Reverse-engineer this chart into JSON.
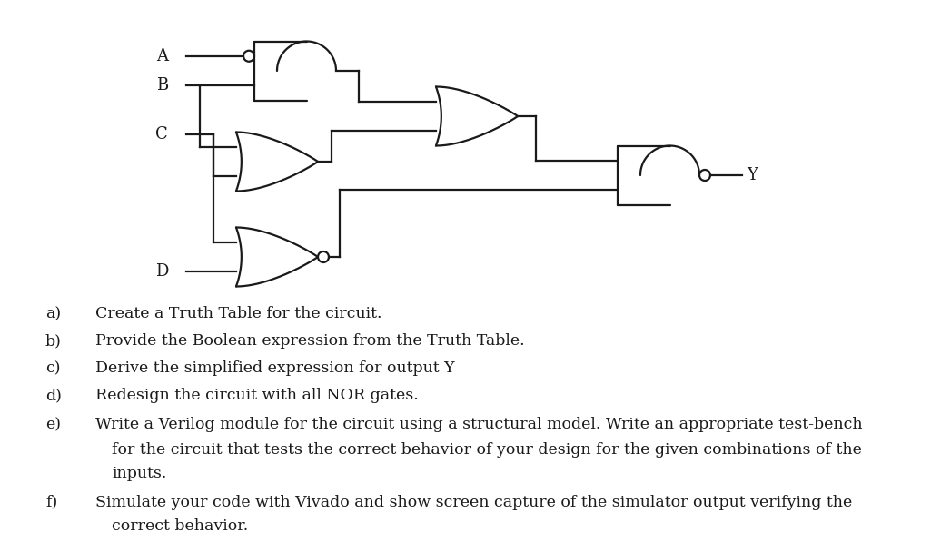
{
  "bg_color": "#ffffff",
  "line_color": "#1a1a1a",
  "line_width": 1.6,
  "circuit_font_size": 13,
  "text_font_size": 12.5,
  "items": [
    {
      "label": "a)",
      "text": "Create a Truth Table for the circuit."
    },
    {
      "label": "b)",
      "text": "Provide the Boolean expression from the Truth Table."
    },
    {
      "label": "c)",
      "text": "Derive the simplified expression for output Y"
    },
    {
      "label": "d)",
      "text": "Redesign the circuit with all NOR gates."
    },
    {
      "label": "e)",
      "text": "Write a Verilog module for the circuit using a structural model. Write an appropriate test-bench",
      "cont": [
        "for the circuit that tests the correct behavior of your design for the given combinations of the",
        "inputs."
      ]
    },
    {
      "label": "f)",
      "text": "Simulate your code with Vivado and show screen capture of the simulator output verifying the",
      "cont": [
        "correct behavior."
      ]
    }
  ]
}
